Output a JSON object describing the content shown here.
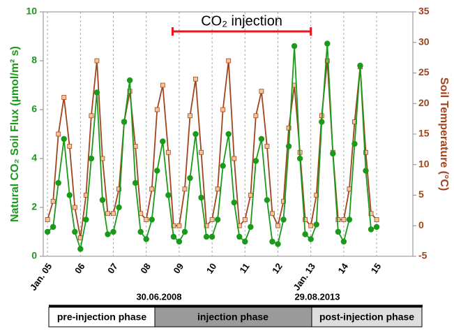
{
  "chart_data": {
    "type": "line",
    "y_label": "Natural CO₂ Soil Flux (µmol/m² s)",
    "y2_label": "Soil Temperature (°C)",
    "annotation": {
      "text": "CO₂ injection",
      "x_start": 2008.8,
      "x_end": 2013.0,
      "color": "#e8141c"
    },
    "xlim": [
      2004.87,
      2016.1
    ],
    "xticks": [
      {
        "value": 2005,
        "label": "Jan. 05"
      },
      {
        "value": 2006,
        "label": "06"
      },
      {
        "value": 2007,
        "label": "07"
      },
      {
        "value": 2008,
        "label": "08"
      },
      {
        "value": 2009,
        "label": "09"
      },
      {
        "value": 2010,
        "label": "10"
      },
      {
        "value": 2011,
        "label": "11"
      },
      {
        "value": 2012,
        "label": "12"
      },
      {
        "value": 2013,
        "label": "Jan. 13"
      },
      {
        "value": 2014,
        "label": "14"
      },
      {
        "value": 2015,
        "label": "15"
      }
    ],
    "ylim": [
      0,
      10
    ],
    "yticks": [
      0,
      2,
      4,
      6,
      8,
      10
    ],
    "y2lim": [
      -5,
      35
    ],
    "y2ticks": [
      -5,
      0,
      5,
      10,
      15,
      20,
      25,
      30,
      35
    ],
    "x": [
      2005,
      2005.17,
      2005.33,
      2005.5,
      2005.67,
      2005.83,
      2006,
      2006.17,
      2006.33,
      2006.5,
      2006.67,
      2006.83,
      2007,
      2007.17,
      2007.33,
      2007.5,
      2007.67,
      2007.83,
      2008,
      2008.17,
      2008.33,
      2008.5,
      2008.67,
      2008.83,
      2009,
      2009.17,
      2009.33,
      2009.5,
      2009.67,
      2009.83,
      2010,
      2010.17,
      2010.33,
      2010.5,
      2010.67,
      2010.83,
      2011,
      2011.17,
      2011.33,
      2011.5,
      2011.67,
      2011.83,
      2012,
      2012.17,
      2012.33,
      2012.5,
      2012.67,
      2012.83,
      2013,
      2013.17,
      2013.33,
      2013.5,
      2013.67,
      2013.83,
      2014,
      2014.17,
      2014.33,
      2014.5,
      2014.67,
      2014.83,
      2015
    ],
    "series": [
      {
        "color": "#1a9a1a",
        "marker": "circle",
        "axis": "y",
        "values": [
          1.0,
          1.2,
          3.0,
          4.8,
          2.5,
          1.0,
          0.3,
          1.5,
          4.0,
          6.7,
          2.3,
          0.9,
          1.0,
          2.0,
          5.5,
          7.2,
          3.0,
          1.0,
          0.7,
          1.5,
          3.5,
          4.7,
          2.5,
          0.8,
          0.6,
          1.0,
          3.2,
          5.0,
          2.4,
          0.8,
          0.8,
          1.5,
          3.7,
          5.0,
          2.2,
          0.8,
          0.6,
          1.2,
          3.9,
          4.8,
          2.3,
          0.6,
          0.5,
          1.5,
          4.5,
          8.6,
          4.0,
          0.9,
          0.7,
          1.3,
          5.5,
          8.7,
          4.2,
          1.0,
          0.6,
          1.5,
          4.6,
          7.8,
          3.5,
          1.1,
          1.2
        ]
      },
      {
        "color": "#a0441c",
        "marker": "square",
        "marker_fill": "#f6c49a",
        "axis": "y2",
        "values": [
          1,
          4,
          15,
          21,
          13,
          3,
          -2,
          5,
          18,
          27,
          11,
          2,
          2,
          6,
          17,
          22,
          13,
          2,
          1,
          6,
          19,
          23,
          12,
          0,
          0,
          6,
          18,
          24,
          12,
          0,
          1,
          6,
          19,
          27,
          11,
          0,
          1,
          5,
          18,
          22,
          13,
          2,
          0,
          4,
          16,
          23,
          12,
          1,
          0,
          5,
          18,
          27,
          12,
          1,
          1,
          6,
          17,
          26,
          12,
          2,
          1
        ]
      }
    ]
  },
  "timeline": {
    "dates": [
      "30.06.2008",
      "29.08.2013"
    ],
    "phases": [
      "pre-injection phase",
      "injection phase",
      "post-injection phase"
    ]
  }
}
